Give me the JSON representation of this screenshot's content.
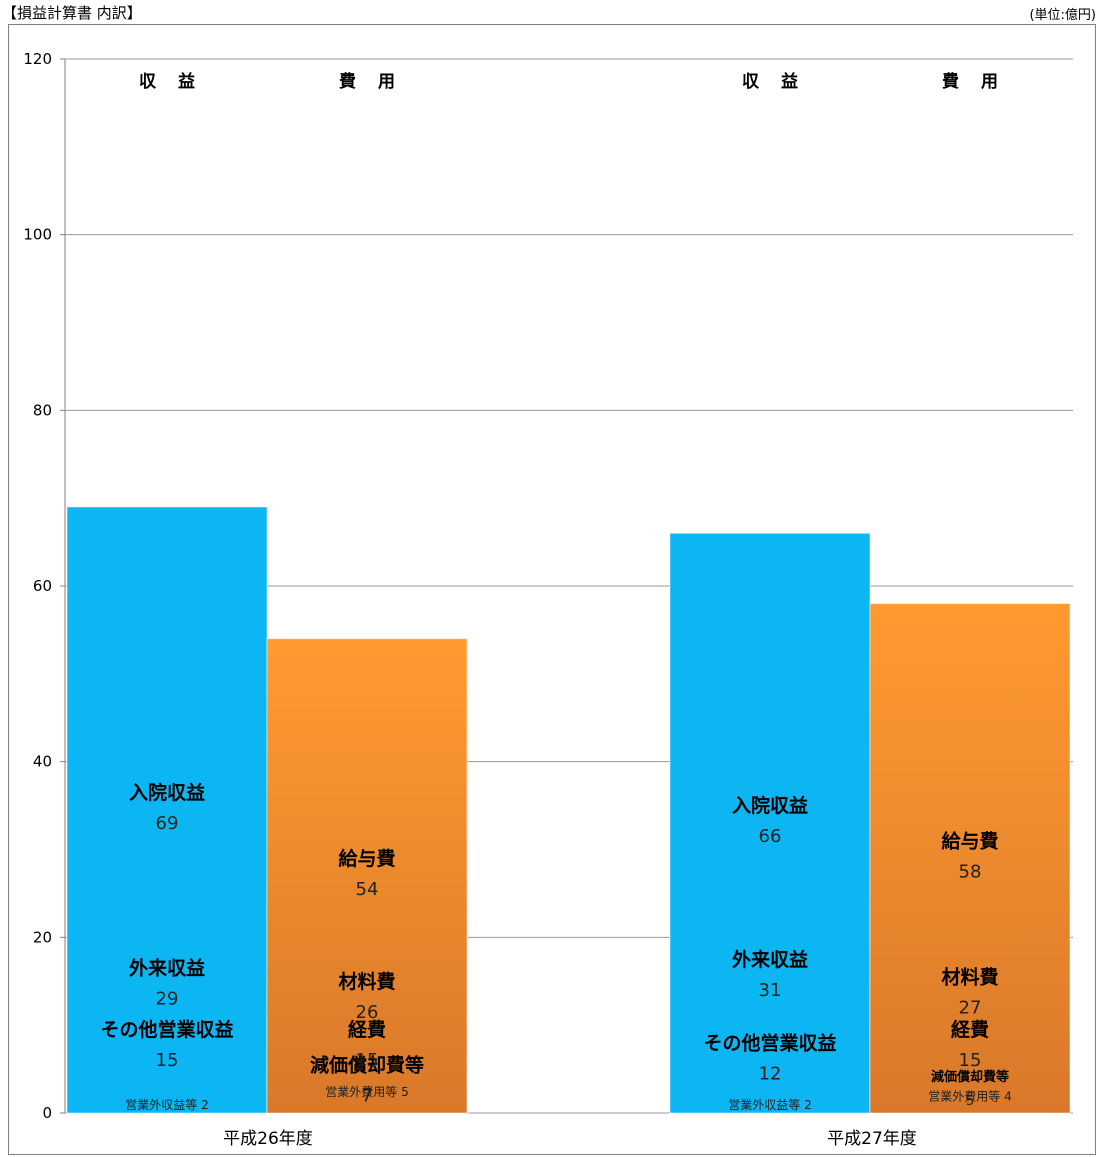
{
  "header": {
    "title": "【損益計算書 内訳】",
    "unit": "(単位:億円)"
  },
  "chart_data": {
    "type": "bar",
    "stacked": true,
    "ylim": [
      0,
      120
    ],
    "yticks": [
      0,
      20,
      40,
      60,
      80,
      100,
      120
    ],
    "grid": true,
    "categories": [
      "平成26年度",
      "平成27年度"
    ],
    "column_labels": [
      "収 益",
      "費 用"
    ],
    "groups": [
      {
        "category": "平成26年度",
        "stacks": [
          {
            "label": "収 益",
            "segments": [
              {
                "name": "営業外収益等",
                "value": 2,
                "label": "営業外収益等 2",
                "color": "#E4F224"
              },
              {
                "name": "その他営業収益",
                "value": 15,
                "label": "その他営業収益",
                "value_label": "15",
                "color": "#66F3FF"
              },
              {
                "name": "外来収益",
                "value": 29,
                "label": "外来収益",
                "value_label": "29",
                "color": "#C3E8F3"
              },
              {
                "name": "入院収益",
                "value": 69,
                "label": "入院収益",
                "value_label": "69",
                "color": "#0BB6F2"
              }
            ]
          },
          {
            "label": "費 用",
            "segments": [
              {
                "name": "営業外費用等",
                "value": 5,
                "label": "営業外費用等 5",
                "color": "#8FD653"
              },
              {
                "name": "減価償却費等",
                "value": 7,
                "label": "減価償却費等",
                "value_label": "7",
                "color": "#FCDEC4"
              },
              {
                "name": "経費",
                "value": 15,
                "label": "経費",
                "value_label": "15",
                "color": "#FF6C0A"
              },
              {
                "name": "材料費",
                "value": 26,
                "label": "材料費",
                "value_label": "26",
                "color": "#FFD90A"
              },
              {
                "name": "給与費",
                "value": 54,
                "label": "給与費",
                "value_label": "54",
                "color": "#F28A22"
              }
            ]
          }
        ]
      },
      {
        "category": "平成27年度",
        "stacks": [
          {
            "label": "収 益",
            "segments": [
              {
                "name": "営業外収益等",
                "value": 2,
                "label": "営業外収益等 2",
                "color": "#E4F224"
              },
              {
                "name": "その他営業収益",
                "value": 12,
                "label": "その他営業収益",
                "value_label": "12",
                "color": "#66F3FF"
              },
              {
                "name": "外来収益",
                "value": 31,
                "label": "外来収益",
                "value_label": "31",
                "color": "#C3E8F3"
              },
              {
                "name": "入院収益",
                "value": 66,
                "label": "入院収益",
                "value_label": "66",
                "color": "#0BB6F2"
              }
            ]
          },
          {
            "label": "費 用",
            "segments": [
              {
                "name": "営業外費用等",
                "value": 4,
                "label": "営業外費用等 4",
                "color": "#8FD653"
              },
              {
                "name": "減価償却費等",
                "value": 5,
                "label": "減価償却費等",
                "value_label": "5",
                "color": "#FCDEC4"
              },
              {
                "name": "経費",
                "value": 15,
                "label": "経費",
                "value_label": "15",
                "color": "#FF6C0A"
              },
              {
                "name": "材料費",
                "value": 27,
                "label": "材料費",
                "value_label": "27",
                "color": "#FFD90A"
              },
              {
                "name": "給与費",
                "value": 58,
                "label": "給与費",
                "value_label": "58",
                "color": "#F28A22"
              }
            ]
          }
        ]
      }
    ]
  }
}
